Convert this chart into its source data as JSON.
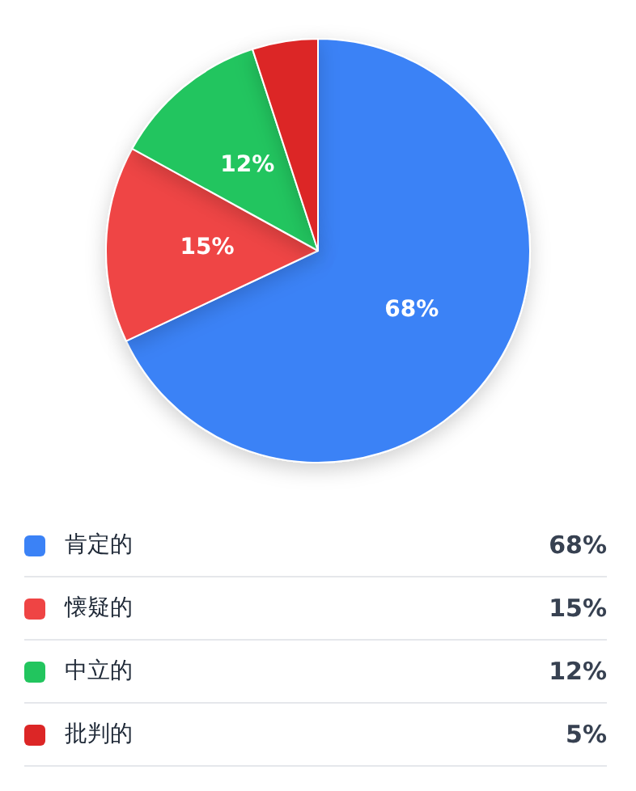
{
  "chart_data": {
    "type": "pie",
    "categories": [
      "肯定的",
      "懐疑的",
      "中立的",
      "批判的"
    ],
    "values": [
      68,
      15,
      12,
      5
    ],
    "colors": [
      "#3b82f6",
      "#ef4444",
      "#22c55e",
      "#dc2626"
    ],
    "value_labels": [
      "68%",
      "15%",
      "12%",
      "5%"
    ],
    "data_labels": true,
    "legend": "bottom"
  }
}
